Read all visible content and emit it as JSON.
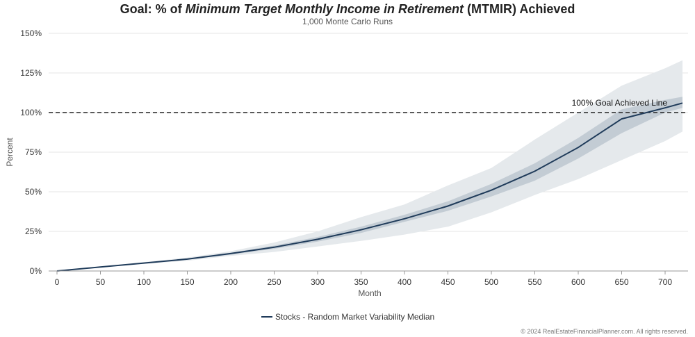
{
  "title": {
    "prefix": "Goal: % of ",
    "italic": "Minimum Target Monthly Income in Retirement",
    "suffix": " (MTMIR) Achieved"
  },
  "subtitle": "1,000 Monte Carlo Runs",
  "copyright": "© 2024 RealEstateFinancialPlanner.com. All rights reserved.",
  "colors": {
    "median": "#1f3b5a",
    "band_inner": "#c3ccd4",
    "band_outer": "#e5e9ec",
    "goal_line": "#222222",
    "grid": "#e6e6e6"
  },
  "chart_data": {
    "type": "area",
    "xlabel": "Month",
    "ylabel": "Percent",
    "xlim": [
      0,
      720
    ],
    "ylim": [
      0,
      150
    ],
    "x_ticks": [
      0,
      50,
      100,
      150,
      200,
      250,
      300,
      350,
      400,
      450,
      500,
      550,
      600,
      650,
      700
    ],
    "y_ticks": [
      0,
      25,
      50,
      75,
      100,
      125,
      150
    ],
    "y_tick_labels": [
      "0%",
      "25%",
      "50%",
      "75%",
      "100%",
      "125%",
      "150%"
    ],
    "grid": true,
    "legend_position": "bottom-center",
    "reference_line": {
      "y": 100,
      "style": "dashed",
      "label": "100% Goal Achieved Line"
    },
    "x": [
      0,
      50,
      100,
      150,
      200,
      250,
      300,
      350,
      400,
      450,
      500,
      550,
      600,
      650,
      700,
      720
    ],
    "series": [
      {
        "name": "Stocks - Random Market Variability Median",
        "values": [
          0,
          2.5,
          5,
          7.5,
          11,
          15,
          20,
          26,
          33,
          41,
          51,
          63,
          78,
          96,
          103,
          106
        ]
      }
    ],
    "bands": [
      {
        "level": "outer",
        "lower": [
          0,
          2.3,
          4.5,
          6.5,
          9.5,
          12,
          15.5,
          19,
          23,
          28,
          37,
          48,
          58,
          70,
          82,
          88
        ],
        "upper": [
          0,
          2.8,
          5.6,
          8.5,
          12.5,
          18,
          25,
          34,
          42,
          54,
          65,
          83,
          100,
          117,
          128,
          133
        ]
      },
      {
        "level": "inner",
        "lower": [
          0,
          2.4,
          4.8,
          7.2,
          10.3,
          14,
          18.5,
          24,
          31,
          38,
          47,
          57,
          71,
          87,
          100,
          103
        ],
        "upper": [
          0,
          2.6,
          5.2,
          7.8,
          11.6,
          16,
          21.5,
          28,
          35.5,
          44,
          55,
          68,
          84,
          102,
          108,
          110
        ]
      }
    ]
  }
}
